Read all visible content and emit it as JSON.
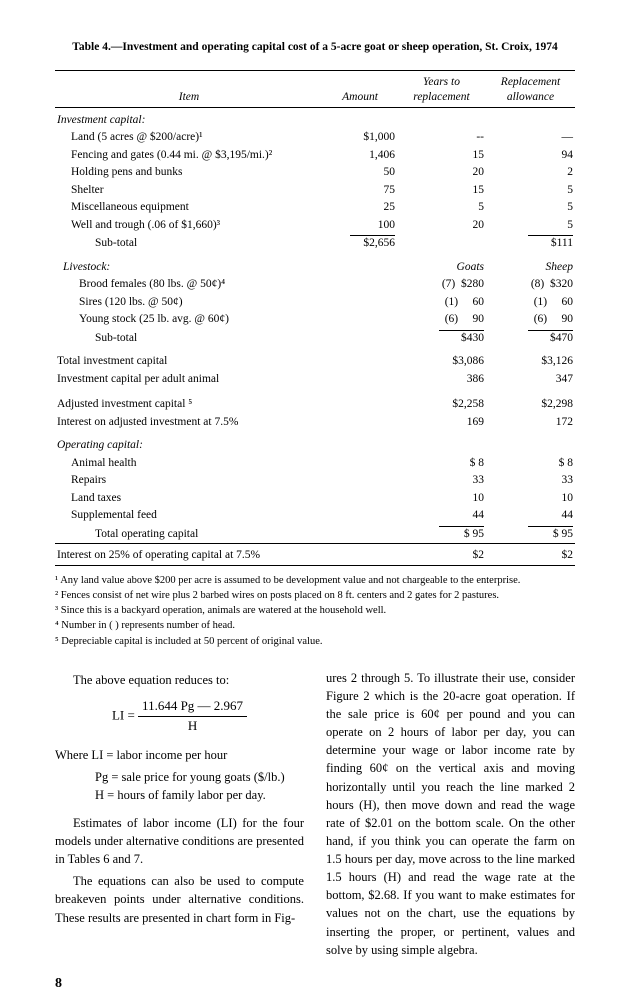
{
  "table": {
    "title": "Table 4.—Investment and operating capital cost of a 5-acre goat or sheep operation, St. Croix, 1974",
    "headers": {
      "item": "Item",
      "amount": "Amount",
      "years": "Years to replacement",
      "repl": "Replacement allowance"
    },
    "invcap_head": "Investment capital:",
    "rows_inv": [
      {
        "item": "Land (5 acres @ $200/acre)¹",
        "amt": "$1,000",
        "yrs": "--",
        "repl": "—"
      },
      {
        "item": "Fencing and gates (0.44 mi. @ $3,195/mi.)²",
        "amt": "1,406",
        "yrs": "15",
        "repl": "94"
      },
      {
        "item": "Holding pens and bunks",
        "amt": "50",
        "yrs": "20",
        "repl": "2"
      },
      {
        "item": "Shelter",
        "amt": "75",
        "yrs": "15",
        "repl": "5"
      },
      {
        "item": "Miscellaneous equipment",
        "amt": "25",
        "yrs": "5",
        "repl": "5"
      },
      {
        "item": "Well and trough (.06 of $1,660)³",
        "amt": "100",
        "yrs": "20",
        "repl": "5"
      }
    ],
    "inv_subtotal": {
      "label": "Sub-total",
      "amt": "$2,656",
      "repl": "$111"
    },
    "livestock_head": "Livestock:",
    "goats_h": "Goats",
    "sheep_h": "Sheep",
    "rows_live": [
      {
        "item": "Brood females (80 lbs. @ 50¢)⁴",
        "g": "(7)  $280",
        "s": "(8)  $320"
      },
      {
        "item": "Sires (120 lbs. @ 50¢)",
        "g": "(1)     60",
        "s": "(1)     60"
      },
      {
        "item": "Young stock (25 lb. avg. @ 60¢)",
        "g": "(6)     90",
        "s": "(6)     90"
      }
    ],
    "live_subtotal": {
      "label": "Sub-total",
      "g": "$430",
      "s": "$470"
    },
    "totinv": {
      "label": "Total investment capital",
      "g": "$3,086",
      "s": "$3,126"
    },
    "perhead": {
      "label": "Investment capital per adult animal",
      "g": "386",
      "s": "347"
    },
    "adjinv": {
      "label": "Adjusted investment capital ⁵",
      "g": "$2,258",
      "s": "$2,298"
    },
    "interest": {
      "label": "Interest on adjusted investment at 7.5%",
      "g": "169",
      "s": "172"
    },
    "opcap_head": "Operating capital:",
    "rows_op": [
      {
        "item": "Animal health",
        "g": "$   8",
        "s": "$   8"
      },
      {
        "item": "Repairs",
        "g": "33",
        "s": "33"
      },
      {
        "item": "Land taxes",
        "g": "10",
        "s": "10"
      },
      {
        "item": "Supplemental feed",
        "g": "44",
        "s": "44"
      }
    ],
    "op_total": {
      "label": "Total operating capital",
      "g": "$ 95",
      "s": "$ 95"
    },
    "int25": {
      "label": "Interest on 25% of operating capital at 7.5%",
      "g": "$2",
      "s": "$2"
    }
  },
  "footnotes": [
    "¹ Any land value above $200 per acre is assumed to be development value and not chargeable to the enterprise.",
    "² Fences consist of net wire plus 2 barbed wires on posts placed on 8 ft. centers and 2 gates for 2 pastures.",
    "³ Since this is a backyard operation, animals are watered at the household well.",
    "⁴ Number in ( ) represents number of head.",
    "⁵ Depreciable capital is included at 50 percent of original value."
  ],
  "body": {
    "left": {
      "l1": "The above equation reduces to:",
      "eq_left": "LI =",
      "eq_num": "11.644 Pg — 2.967",
      "eq_den": "H",
      "where": "Where LI = labor income per hour",
      "d1": "Pg = sale price for young goats ($/lb.)",
      "d2": "H = hours of family labor per day.",
      "p2": "Estimates of labor income (LI) for the four models under alternative conditions are presented in Tables 6 and 7.",
      "p3": "The equations can also be used to compute breakeven points under alternative conditions. These results are presented in chart form in Fig-"
    },
    "right": {
      "p1": "ures 2 through 5. To illustrate their use, consider Figure 2 which is the 20-acre goat operation. If the sale price is 60¢ per pound and you can operate on 2 hours of labor per day, you can determine your wage or labor income rate by finding 60¢ on the vertical axis and moving horizontally until you reach the line marked 2 hours (H), then move down and read the wage rate of $2.01 on the bottom scale. On the other hand, if you think you can operate the farm on 1.5 hours per day, move across to the line marked 1.5 hours (H) and read the wage rate at the bottom, $2.68. If you want to make estimates for values not on the chart, use the equations by inserting the proper, or pertinent, values and solve by using simple algebra."
    }
  },
  "page_num": "8"
}
